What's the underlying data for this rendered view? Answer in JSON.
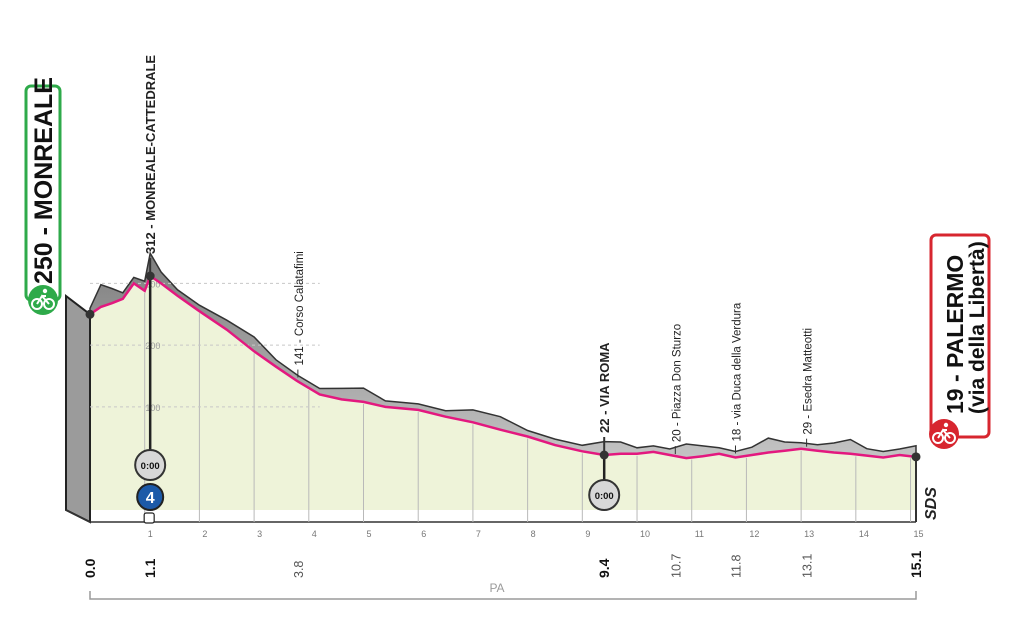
{
  "chart_data": {
    "type": "area",
    "title": "",
    "xlabel": "",
    "ylabel": "",
    "xlim": [
      0,
      15.1
    ],
    "ylim": [
      0,
      400
    ],
    "grid": "vertical-km-lines",
    "y_ticks": [
      "100",
      "200",
      "300"
    ],
    "x_ticks": [
      "1",
      "2",
      "3",
      "4",
      "5",
      "6",
      "7",
      "8",
      "9",
      "10",
      "11",
      "12",
      "13",
      "14",
      "15"
    ],
    "milestones": [
      {
        "km": 0.0,
        "label": "0.0",
        "bold": true
      },
      {
        "km": 1.1,
        "label": "1.1",
        "bold": true
      },
      {
        "km": 3.8,
        "label": "3.8",
        "bold": false
      },
      {
        "km": 9.4,
        "label": "9.4",
        "bold": true
      },
      {
        "km": 10.7,
        "label": "10.7",
        "bold": false
      },
      {
        "km": 11.8,
        "label": "11.8",
        "bold": false
      },
      {
        "km": 13.1,
        "label": "13.1",
        "bold": false
      },
      {
        "km": 15.1,
        "label": "15.1",
        "bold": true
      }
    ],
    "series": [
      {
        "x": [
          0,
          0.2,
          0.4,
          0.6,
          0.8,
          1.0,
          1.1,
          1.3,
          1.6,
          2.0,
          2.5,
          3.0,
          3.4,
          3.8,
          4.2,
          4.6,
          5.0,
          5.4,
          6.0,
          6.5,
          7.0,
          7.5,
          8.0,
          8.5,
          9.0,
          9.4,
          9.7,
          10.0,
          10.3,
          10.6,
          10.9,
          11.2,
          11.5,
          11.8,
          12.1,
          12.4,
          12.7,
          13.0,
          13.3,
          13.6,
          13.9,
          14.2,
          14.5,
          14.8,
          15.1
        ],
        "values": [
          250,
          262,
          268,
          275,
          300,
          288,
          312,
          300,
          280,
          255,
          225,
          190,
          165,
          141,
          120,
          112,
          108,
          100,
          95,
          84,
          75,
          63,
          52,
          38,
          28,
          22,
          24,
          24,
          27,
          22,
          17,
          20,
          24,
          18,
          22,
          26,
          29,
          32,
          29,
          26,
          24,
          21,
          18,
          22,
          19
        ]
      }
    ],
    "annotations": [
      {
        "km": 1.1,
        "text": "312 - MONREALE-CATTEDRALE",
        "bold": true
      },
      {
        "km": 3.8,
        "text": "141 - Corso Calatafimi",
        "bold": false
      },
      {
        "km": 9.4,
        "text": "22 - VIA ROMA",
        "bold": true
      },
      {
        "km": 10.7,
        "text": "20 - Piazza Don Sturzo",
        "bold": false
      },
      {
        "km": 11.8,
        "text": "18 - via Duca della Verdura",
        "bold": false
      },
      {
        "km": 13.1,
        "text": "29 - Esedra Matteotti",
        "bold": false
      }
    ],
    "start": {
      "label": "250 - MONREALE"
    },
    "finish": {
      "label_line1": "19 - PALERMO",
      "label_line2": "(via della Libertà)"
    },
    "timers": [
      {
        "km": 1.1,
        "text": "0:00"
      },
      {
        "km": 9.4,
        "text": "0:00"
      }
    ],
    "category_badge": {
      "km": 1.1,
      "text": "4"
    },
    "right_mark": "SDS",
    "bracket_label": "PA"
  },
  "colors": {
    "start_green": "#2eaa4a",
    "finish_red": "#d7262f",
    "road_pink": "#e3187f",
    "fill_green": "#eef3d9",
    "relief_gray": "#a3a3a3",
    "category_blue": "#1c5aa8"
  },
  "icons": {
    "start": "cyclist-icon",
    "finish": "cyclist-icon",
    "timer": "stopwatch-icon",
    "badge": "category-badge-icon"
  }
}
